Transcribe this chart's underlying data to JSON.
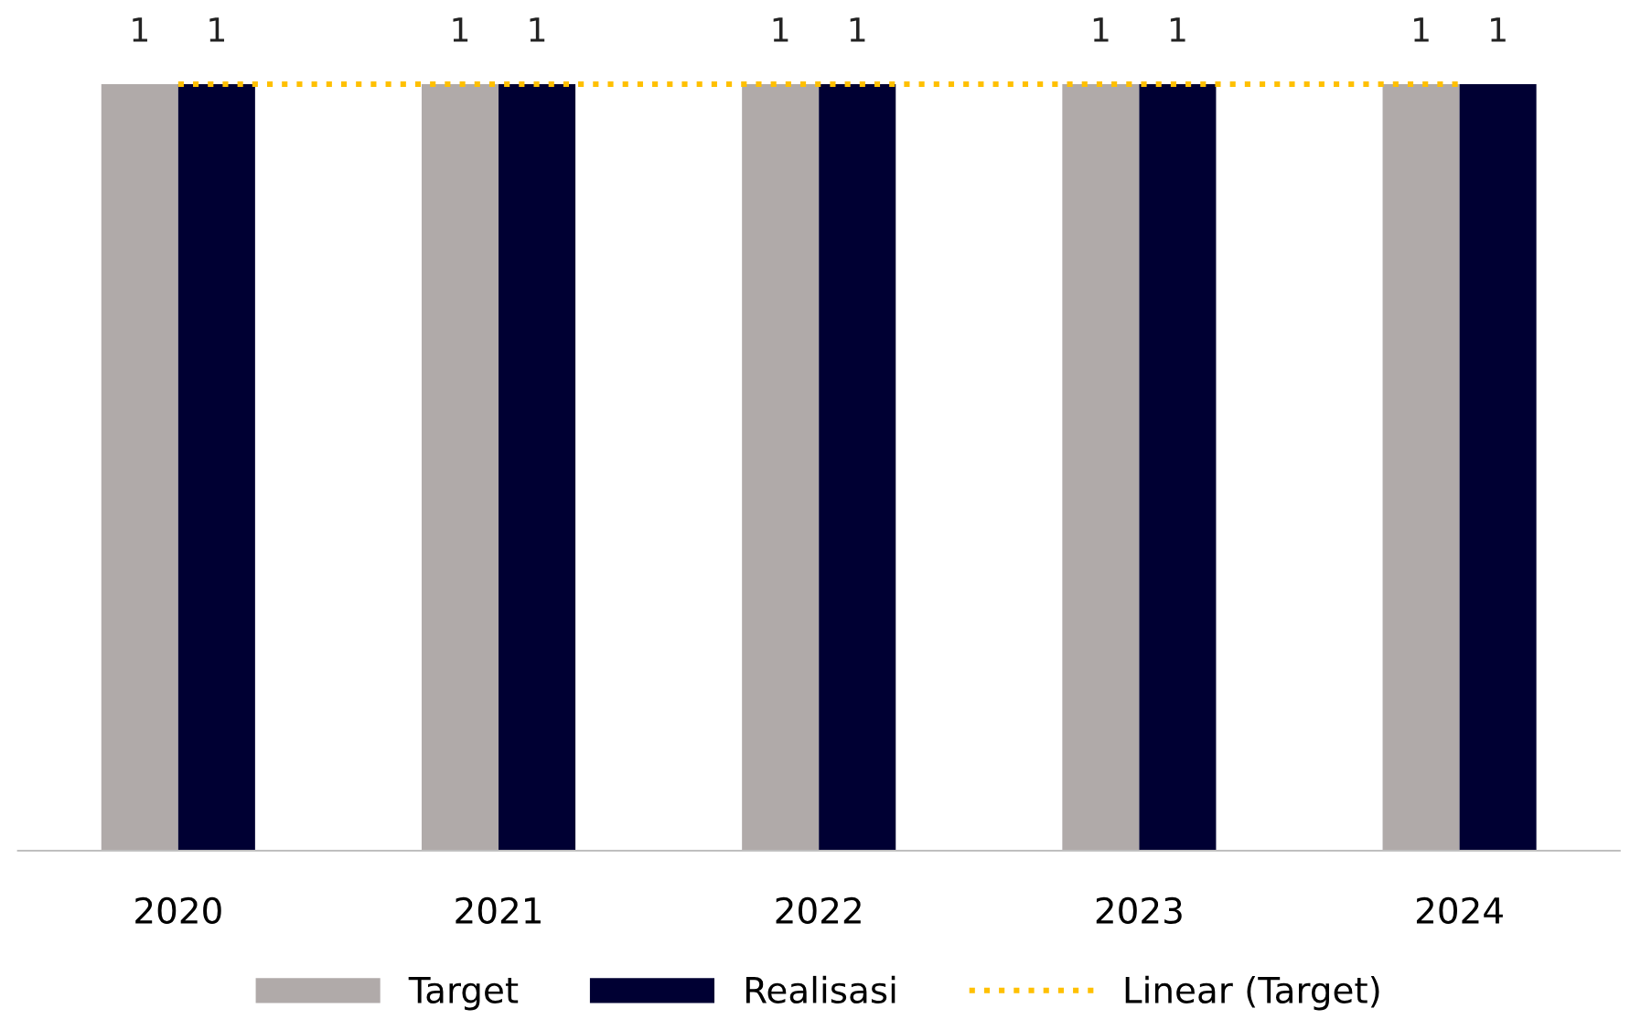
{
  "chart_data": {
    "type": "bar",
    "categories": [
      "2020",
      "2021",
      "2022",
      "2023",
      "2024"
    ],
    "series": [
      {
        "name": "Target",
        "color": "#b0aaa9",
        "values": [
          1,
          1,
          1,
          1,
          1
        ],
        "value_labels": [
          "1",
          "1",
          "1",
          "1",
          "1"
        ]
      },
      {
        "name": "Realisasi",
        "color": "#000033",
        "values": [
          1,
          1,
          1,
          1,
          1
        ],
        "value_labels": [
          "1",
          "1",
          "1",
          "1",
          "1"
        ]
      },
      {
        "name": "Linear (Target)",
        "type": "line",
        "color": "#ffc000",
        "line_style": "dotted",
        "values": [
          1,
          1,
          1,
          1,
          1
        ]
      }
    ],
    "ylim": [
      0,
      1
    ],
    "tick_labels": "x",
    "grid": false,
    "legend": "bottom"
  }
}
